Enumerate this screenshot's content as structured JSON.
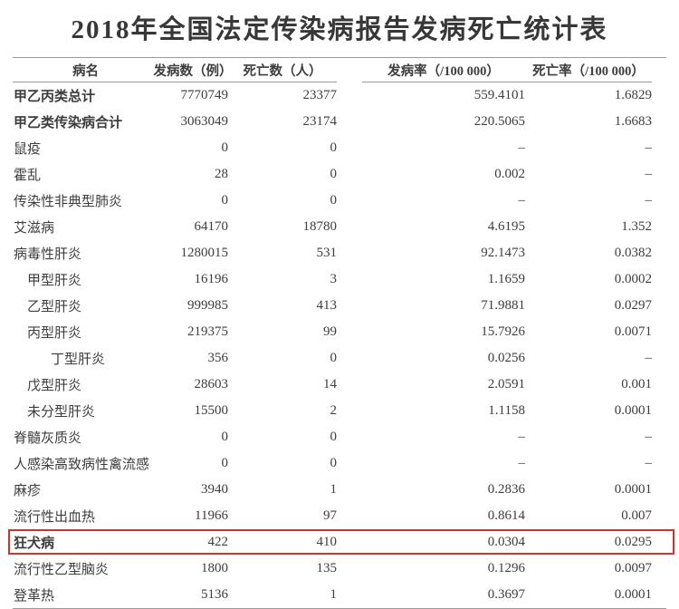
{
  "title": "2018年全国法定传染病报告发病死亡统计表",
  "highlight": {
    "row": "狂犬病",
    "color": "#cf342b"
  },
  "chart_data": {
    "type": "table",
    "title": "2018年全国法定传染病报告发病死亡统计表",
    "columns": [
      "病名",
      "发病数（例）",
      "死亡数（人）",
      "发病率（/100 000）",
      "死亡率（/100 000）"
    ],
    "rows": [
      {
        "name": "甲乙丙类总计",
        "cases": "7770749",
        "deaths": "23377",
        "incidence_rate": "559.4101",
        "mortality_rate": "1.6829",
        "bold": true,
        "indent": 0,
        "highlight": false
      },
      {
        "name": "甲乙类传染病合计",
        "cases": "3063049",
        "deaths": "23174",
        "incidence_rate": "220.5065",
        "mortality_rate": "1.6683",
        "bold": true,
        "indent": 0,
        "highlight": false
      },
      {
        "name": "鼠疫",
        "cases": "0",
        "deaths": "0",
        "incidence_rate": "–",
        "mortality_rate": "–",
        "bold": false,
        "indent": 0,
        "highlight": false
      },
      {
        "name": "霍乱",
        "cases": "28",
        "deaths": "0",
        "incidence_rate": "0.002",
        "mortality_rate": "–",
        "bold": false,
        "indent": 0,
        "highlight": false
      },
      {
        "name": "传染性非典型肺炎",
        "cases": "0",
        "deaths": "0",
        "incidence_rate": "–",
        "mortality_rate": "–",
        "bold": false,
        "indent": 0,
        "highlight": false
      },
      {
        "name": "艾滋病",
        "cases": "64170",
        "deaths": "18780",
        "incidence_rate": "4.6195",
        "mortality_rate": "1.352",
        "bold": false,
        "indent": 0,
        "highlight": false
      },
      {
        "name": "病毒性肝炎",
        "cases": "1280015",
        "deaths": "531",
        "incidence_rate": "92.1473",
        "mortality_rate": "0.0382",
        "bold": false,
        "indent": 0,
        "highlight": false
      },
      {
        "name": "甲型肝炎",
        "cases": "16196",
        "deaths": "3",
        "incidence_rate": "1.1659",
        "mortality_rate": "0.0002",
        "bold": false,
        "indent": 1,
        "highlight": false
      },
      {
        "name": "乙型肝炎",
        "cases": "999985",
        "deaths": "413",
        "incidence_rate": "71.9881",
        "mortality_rate": "0.0297",
        "bold": false,
        "indent": 1,
        "highlight": false
      },
      {
        "name": "丙型肝炎",
        "cases": "219375",
        "deaths": "99",
        "incidence_rate": "15.7926",
        "mortality_rate": "0.0071",
        "bold": false,
        "indent": 1,
        "highlight": false
      },
      {
        "name": "丁型肝炎",
        "cases": "356",
        "deaths": "0",
        "incidence_rate": "0.0256",
        "mortality_rate": "–",
        "bold": false,
        "indent": 2,
        "highlight": false
      },
      {
        "name": "戊型肝炎",
        "cases": "28603",
        "deaths": "14",
        "incidence_rate": "2.0591",
        "mortality_rate": "0.001",
        "bold": false,
        "indent": 1,
        "highlight": false
      },
      {
        "name": "未分型肝炎",
        "cases": "15500",
        "deaths": "2",
        "incidence_rate": "1.1158",
        "mortality_rate": "0.0001",
        "bold": false,
        "indent": 1,
        "highlight": false
      },
      {
        "name": "脊髓灰质炎",
        "cases": "0",
        "deaths": "0",
        "incidence_rate": "–",
        "mortality_rate": "–",
        "bold": false,
        "indent": 0,
        "highlight": false
      },
      {
        "name": "人感染高致病性禽流感",
        "cases": "0",
        "deaths": "0",
        "incidence_rate": "–",
        "mortality_rate": "–",
        "bold": false,
        "indent": 0,
        "highlight": false
      },
      {
        "name": "麻疹",
        "cases": "3940",
        "deaths": "1",
        "incidence_rate": "0.2836",
        "mortality_rate": "0.0001",
        "bold": false,
        "indent": 0,
        "highlight": false
      },
      {
        "name": "流行性出血热",
        "cases": "11966",
        "deaths": "97",
        "incidence_rate": "0.8614",
        "mortality_rate": "0.007",
        "bold": false,
        "indent": 0,
        "highlight": false
      },
      {
        "name": "狂犬病",
        "cases": "422",
        "deaths": "410",
        "incidence_rate": "0.0304",
        "mortality_rate": "0.0295",
        "bold": true,
        "indent": 0,
        "highlight": true
      },
      {
        "name": "流行性乙型脑炎",
        "cases": "1800",
        "deaths": "135",
        "incidence_rate": "0.1296",
        "mortality_rate": "0.0097",
        "bold": false,
        "indent": 0,
        "highlight": false
      },
      {
        "name": "登革热",
        "cases": "5136",
        "deaths": "1",
        "incidence_rate": "0.3697",
        "mortality_rate": "0.0001",
        "bold": false,
        "indent": 0,
        "highlight": false
      }
    ]
  }
}
